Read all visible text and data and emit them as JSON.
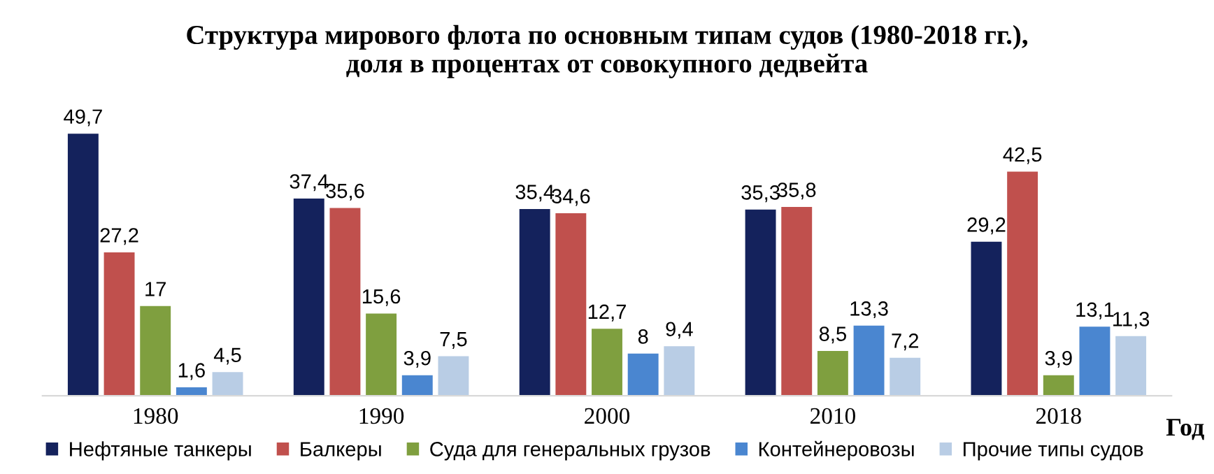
{
  "chart_data": {
    "type": "bar",
    "title": "Структура мирового флота по основным типам судов (1980-2018 гг.),\nдоля в процентах от совокупного дедвейта",
    "xlabel": "Год",
    "categories": [
      "1980",
      "1990",
      "2000",
      "2010",
      "2018"
    ],
    "series": [
      {
        "name": "Нефтяные танкеры",
        "color": "#14225c",
        "values": [
          49.7,
          37.4,
          35.4,
          35.3,
          29.2
        ],
        "value_labels": [
          "49,7",
          "37,4",
          "35,4",
          "35,3",
          "29,2"
        ]
      },
      {
        "name": "Балкеры",
        "color": "#c0504d",
        "values": [
          27.2,
          35.6,
          34.6,
          35.8,
          42.5
        ],
        "value_labels": [
          "27,2",
          "35,6",
          "34,6",
          "35,8",
          "42,5"
        ]
      },
      {
        "name": "Суда для генеральных грузов",
        "color": "#7f9f3f",
        "values": [
          17,
          15.6,
          12.7,
          8.5,
          3.9
        ],
        "value_labels": [
          "17",
          "15,6",
          "12,7",
          "8,5",
          "3,9"
        ]
      },
      {
        "name": "Контейнеровозы",
        "color": "#4a86d0",
        "values": [
          1.6,
          3.9,
          8,
          13.3,
          13.1
        ],
        "value_labels": [
          "1,6",
          "3,9",
          "8",
          "13,3",
          "13,1"
        ]
      },
      {
        "name": "Прочие типы судов",
        "color": "#b9cde5",
        "values": [
          4.5,
          7.5,
          9.4,
          7.2,
          11.3
        ],
        "value_labels": [
          "4,5",
          "7,5",
          "9,4",
          "7,2",
          "11,3"
        ]
      }
    ],
    "legend": "bottom",
    "tick_labels": "x"
  }
}
